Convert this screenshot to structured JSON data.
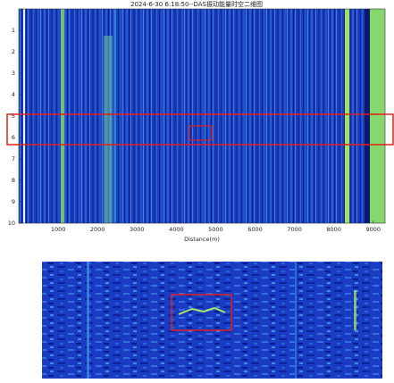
{
  "chart_data": {
    "type": "heatmap",
    "title": "2024-6-30  6:18:50--DAS振动能量时空二维图",
    "x_label": "Distance(m)",
    "xlim": [
      0,
      9300
    ],
    "xticks": [
      1000,
      2000,
      3000,
      4000,
      5000,
      6000,
      7000,
      8000,
      9000
    ],
    "ylim": [
      0,
      10
    ],
    "yticks": [
      1,
      2,
      3,
      4,
      5,
      6,
      7,
      8,
      9,
      10
    ]
  }
}
